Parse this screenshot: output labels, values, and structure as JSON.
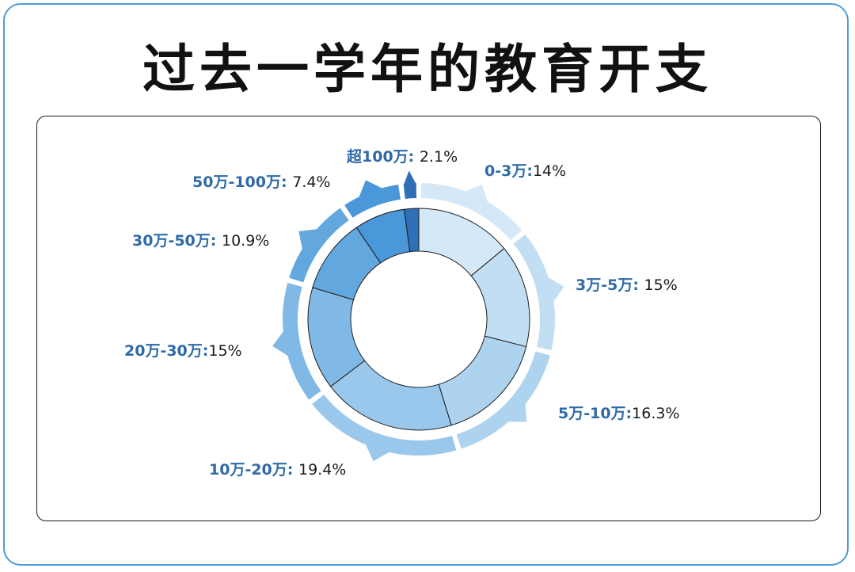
{
  "title": "过去一学年的教育开支",
  "chart_data": {
    "type": "pie",
    "title": "过去一学年的教育开支",
    "categories": [
      "0-3万",
      "3万-5万",
      "5万-10万",
      "10万-20万",
      "20万-30万",
      "30万-50万",
      "50万-100万",
      "超100万"
    ],
    "values": [
      14,
      15,
      16.3,
      19.4,
      15,
      10.9,
      7.4,
      2.1
    ],
    "value_labels": [
      "14%",
      "15%",
      "16.3%",
      "19.4%",
      "15%",
      "10.9%",
      "7.4%",
      "2.1%"
    ],
    "separators": [
      ":",
      ": ",
      ":",
      ": ",
      ":",
      ": ",
      ": ",
      ": "
    ],
    "colors": [
      "#d4e8f7",
      "#c2def3",
      "#aed3ef",
      "#99c8ec",
      "#80b9e6",
      "#62a7de",
      "#4a97da",
      "#2f6fb8"
    ],
    "legend": "none"
  }
}
